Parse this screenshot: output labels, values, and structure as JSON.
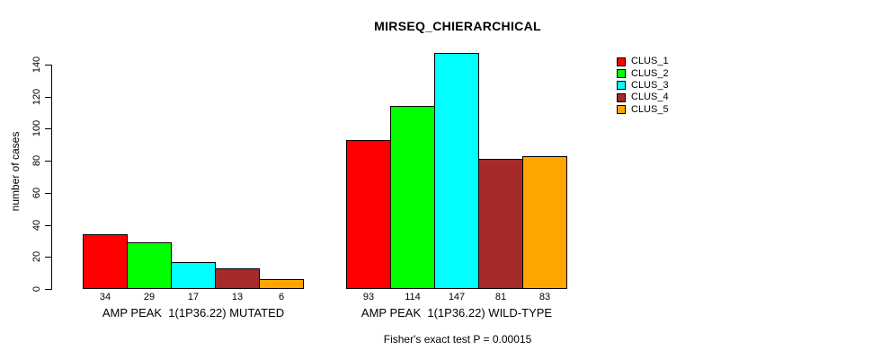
{
  "chart_data": {
    "type": "bar",
    "title": "MIRSEQ_CHIERARCHICAL",
    "ylabel": "number of cases",
    "xlabel": "",
    "caption": "Fisher's exact test P = 0.00015",
    "ylim": [
      0,
      140
    ],
    "yticks": [
      0,
      20,
      40,
      60,
      80,
      100,
      120,
      140
    ],
    "grid": false,
    "background_color": "#ffffff",
    "bar_border_color": "#000000",
    "categories": [
      "AMP PEAK  1(1P36.22) MUTATED",
      "AMP PEAK  1(1P36.22) WILD-TYPE"
    ],
    "series": [
      {
        "name": "CLUS_1",
        "color": "#FF0000",
        "values": [
          34,
          93
        ]
      },
      {
        "name": "CLUS_2",
        "color": "#00FF00",
        "values": [
          29,
          114
        ]
      },
      {
        "name": "CLUS_3",
        "color": "#00FFFF",
        "values": [
          17,
          147
        ]
      },
      {
        "name": "CLUS_4",
        "color": "#A52A2A",
        "values": [
          13,
          81
        ]
      },
      {
        "name": "CLUS_5",
        "color": "#FFA500",
        "values": [
          6,
          83
        ]
      }
    ],
    "legend": {
      "position": "top-right",
      "entries": [
        {
          "label": "CLUS_1",
          "color": "#FF0000"
        },
        {
          "label": "CLUS_2",
          "color": "#00FF00"
        },
        {
          "label": "CLUS_3",
          "color": "#00FFFF"
        },
        {
          "label": "CLUS_4",
          "color": "#A52A2A"
        },
        {
          "label": "CLUS_5",
          "color": "#FFA500"
        }
      ]
    }
  }
}
